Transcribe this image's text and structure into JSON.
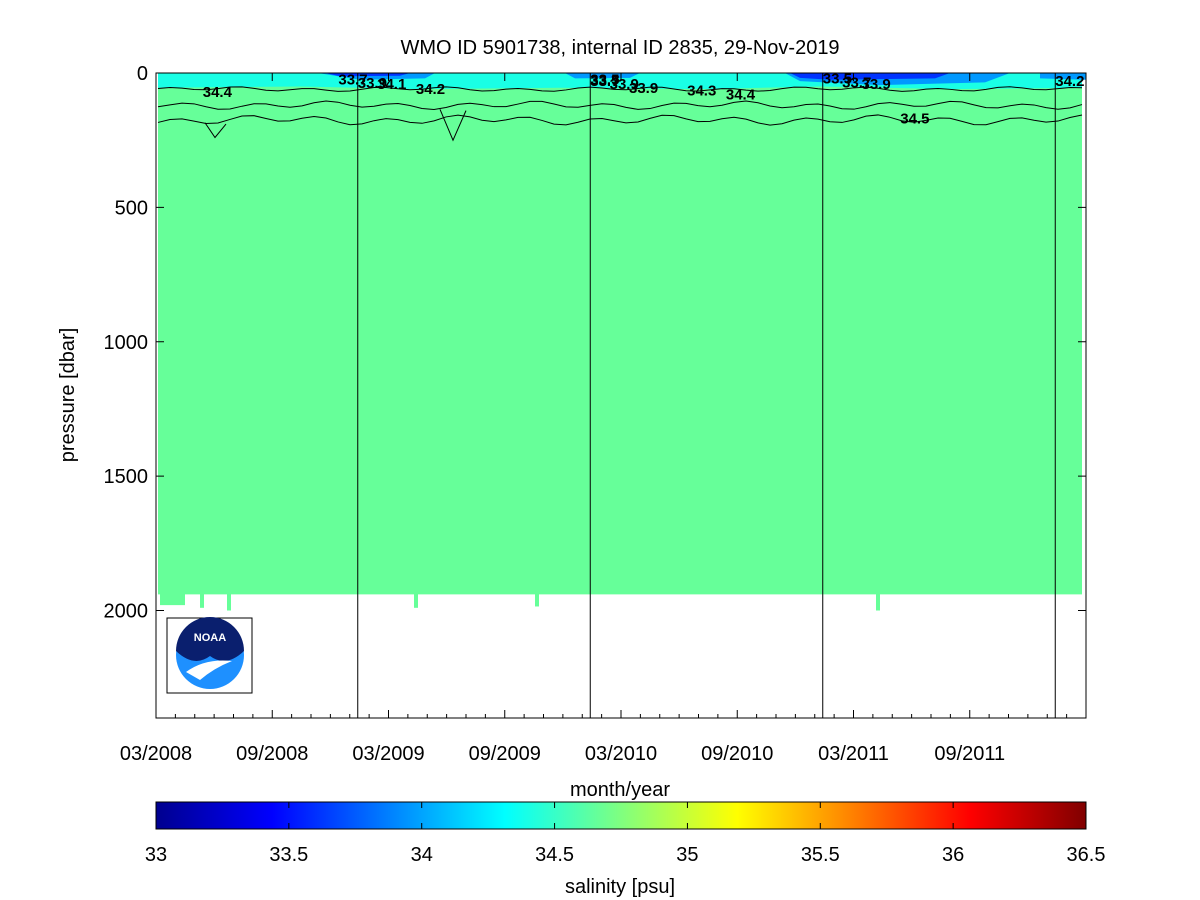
{
  "chart_data": {
    "type": "heatmap",
    "title": "WMO ID 5901738, internal ID 2835, 29-Nov-2019",
    "xlabel": "month/year",
    "ylabel": "pressure [dbar]",
    "x_ticks": [
      "03/2008",
      "09/2008",
      "03/2009",
      "09/2009",
      "03/2010",
      "09/2010",
      "03/2011",
      "09/2011"
    ],
    "y_ticks": [
      "0",
      "500",
      "1000",
      "1500",
      "2000"
    ],
    "ylim": [
      2400,
      0
    ],
    "xlim": [
      "03/2008",
      "03/2012"
    ],
    "year_boundaries": [
      "01/2009",
      "01/2010",
      "01/2011",
      "01/2012"
    ],
    "profile_max_pressure": 1940,
    "deep_value": 34.6,
    "mixed_layer_value": 34.3,
    "surface_minimum": 33.5,
    "contour_labels": [
      {
        "text": "34.4",
        "x": "05/2008",
        "y": 70
      },
      {
        "text": "33.7",
        "x": "12/2008",
        "y": 25
      },
      {
        "text": "33.9",
        "x": "01/2009",
        "y": 38
      },
      {
        "text": "34.1",
        "x": "02/2009",
        "y": 40
      },
      {
        "text": "34.2",
        "x": "04/2009",
        "y": 60
      },
      {
        "text": "33.5",
        "x": "01/2010",
        "y": 25
      },
      {
        "text": "33.7",
        "x": "01/2010",
        "y": 30
      },
      {
        "text": "33.9",
        "x": "02/2010",
        "y": 40
      },
      {
        "text": "33.9",
        "x": "03/2010",
        "y": 55
      },
      {
        "text": "34.3",
        "x": "06/2010",
        "y": 65
      },
      {
        "text": "34.4",
        "x": "08/2010",
        "y": 80
      },
      {
        "text": "33.5",
        "x": "01/2011",
        "y": 20
      },
      {
        "text": "33.7",
        "x": "02/2011",
        "y": 35
      },
      {
        "text": "33.9",
        "x": "03/2011",
        "y": 40
      },
      {
        "text": "34.5",
        "x": "05/2011",
        "y": 170
      },
      {
        "text": "34.2",
        "x": "01/2012",
        "y": 30
      }
    ],
    "colorbar": {
      "label": "salinity [psu]",
      "min": 33,
      "max": 36.5,
      "ticks": [
        "33",
        "33.5",
        "34",
        "34.5",
        "35",
        "35.5",
        "36",
        "36.5"
      ],
      "colormap": "jet"
    }
  },
  "colors": {
    "deep": "#66ff99",
    "mixed": "#1affe5",
    "fresh": "#0099ff",
    "freshest": "#0033ff"
  },
  "logo": {
    "text": "NOAA"
  }
}
